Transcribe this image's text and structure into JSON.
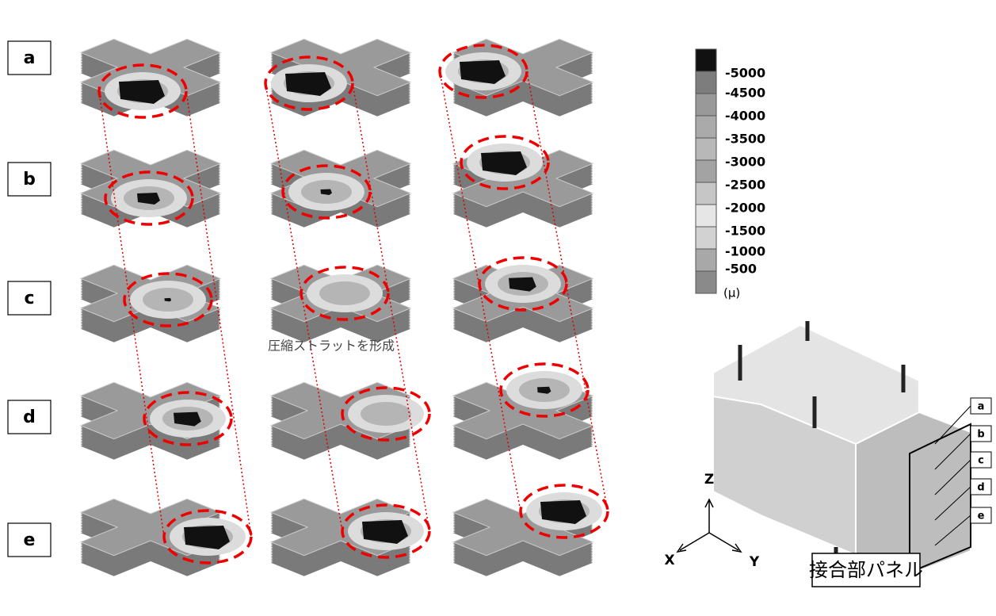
{
  "rows": [
    "a",
    "b",
    "c",
    "d",
    "e"
  ],
  "legend": {
    "labels": [
      "-5000",
      "-4500",
      "-4000",
      "-3500",
      "-3000",
      "-2500",
      "-2000",
      "-1500",
      "-1000",
      "-500"
    ],
    "unit": "(μ)"
  },
  "annotation": "圧縮ストラットを形成",
  "axes": {
    "z": "Z",
    "x": "X",
    "y": "Y"
  },
  "panel": {
    "title": "接合部パネル",
    "levels": [
      "a",
      "b",
      "c",
      "d",
      "e"
    ]
  }
}
